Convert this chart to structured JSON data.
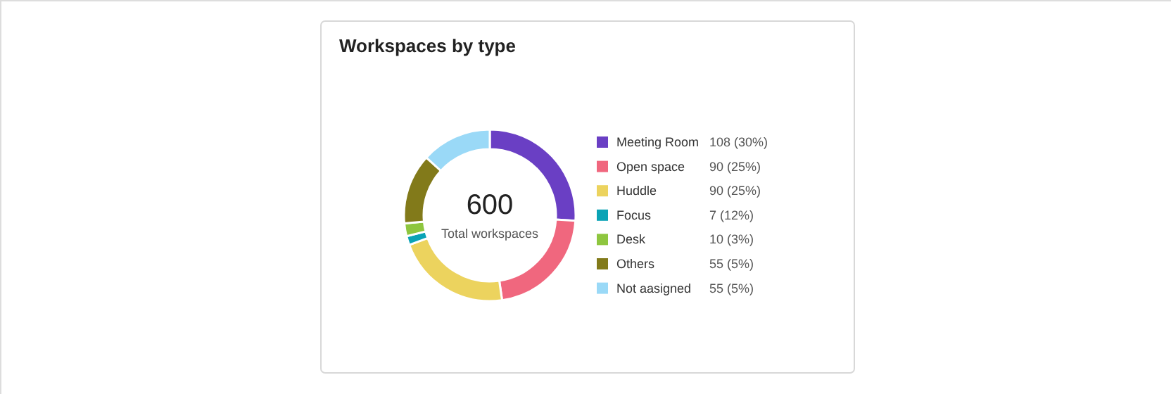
{
  "chart_data": {
    "type": "donut",
    "title": "Workspaces by type",
    "categories": [
      "Meeting Room",
      "Open space",
      "Huddle",
      "Focus",
      "Desk",
      "Others",
      "Not aasigned"
    ],
    "values": [
      108,
      90,
      90,
      7,
      10,
      55,
      55
    ],
    "colors": [
      "#6a3fc4",
      "#f0677e",
      "#ecd35e",
      "#0aa3b5",
      "#8ec63f",
      "#827a1a",
      "#9ad9f7"
    ],
    "value_labels": [
      "108 (30%)",
      "90 (25%)",
      "90 (25%)",
      "7 (12%)",
      "10 (3%)",
      "55 (5%)",
      "55 (5%)"
    ],
    "annotations": [
      "600",
      "Total workspaces"
    ],
    "legend": "right"
  }
}
